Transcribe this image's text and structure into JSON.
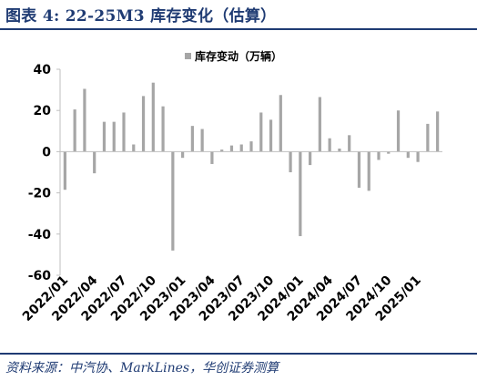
{
  "figure": {
    "title": "图表 4:  22-25M3 库存变化（估算）",
    "source": "资料来源：中汽协、MarkLines，华创证券测算"
  },
  "colors": {
    "bar": "#a6a6a6",
    "title": "#1f3b73",
    "axis": "#bfbfbf",
    "text": "#000000"
  },
  "chart_data": {
    "type": "bar",
    "title": "",
    "xlabel": "",
    "ylabel": "",
    "ylim": [
      -60,
      40
    ],
    "yticks": [
      40,
      20,
      0,
      -20,
      -40,
      -60
    ],
    "grid": false,
    "legend_position": "top-center",
    "categories": [
      "2022/01",
      "2022/02",
      "2022/03",
      "2022/04",
      "2022/05",
      "2022/06",
      "2022/07",
      "2022/08",
      "2022/09",
      "2022/10",
      "2022/11",
      "2022/12",
      "2023/01",
      "2023/02",
      "2023/03",
      "2023/04",
      "2023/05",
      "2023/06",
      "2023/07",
      "2023/08",
      "2023/09",
      "2023/10",
      "2023/11",
      "2023/12",
      "2024/01",
      "2024/02",
      "2024/03",
      "2024/04",
      "2024/05",
      "2024/06",
      "2024/07",
      "2024/08",
      "2024/09",
      "2024/10",
      "2024/11",
      "2024/12",
      "2025/01",
      "2025/02",
      "2025/03"
    ],
    "x_tick_labels": [
      "2022/01",
      "2022/04",
      "2022/07",
      "2022/10",
      "2023/01",
      "2023/04",
      "2023/07",
      "2023/10",
      "2024/01",
      "2024/04",
      "2024/07",
      "2024/10",
      "2025/01"
    ],
    "series": [
      {
        "name": "库存变动（万辆）",
        "values": [
          -18.5,
          20.5,
          30.5,
          -10.5,
          14.5,
          14.5,
          19,
          3.5,
          27,
          33.5,
          22,
          -48,
          -3,
          12.5,
          11,
          -6,
          1,
          3,
          3.5,
          5,
          19,
          15.5,
          27.5,
          -10,
          -41,
          -6.5,
          26.5,
          6.5,
          1.5,
          8,
          -17.5,
          -19,
          -4,
          -1,
          20,
          -3,
          -5,
          13.5,
          19.5
        ]
      }
    ]
  }
}
